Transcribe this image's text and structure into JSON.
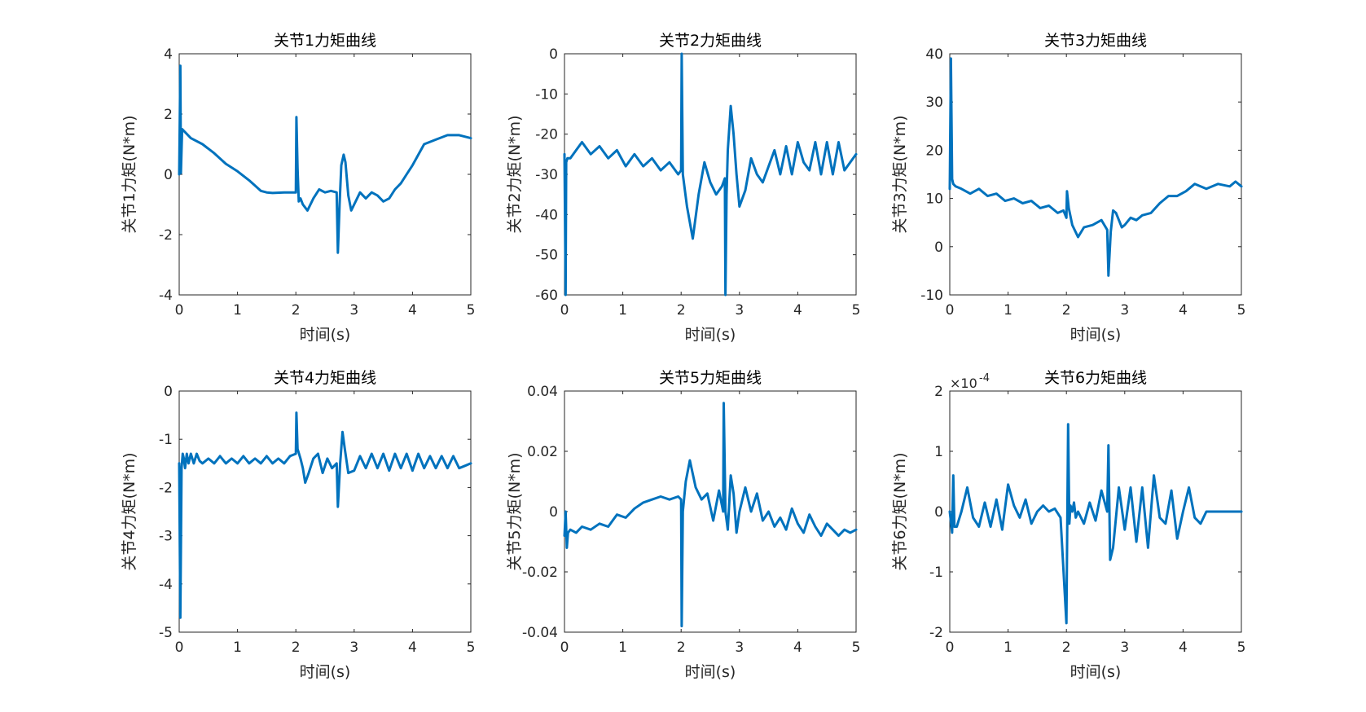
{
  "figure": {
    "line_color": "#0072BD"
  },
  "chart_data": [
    {
      "type": "line",
      "title": "关节1力矩曲线",
      "xlabel": "时间(s)",
      "ylabel": "关节1力矩(N*m)",
      "xlim": [
        0,
        5
      ],
      "ylim": [
        -4,
        4
      ],
      "xticks": [
        0,
        1,
        2,
        3,
        4,
        5
      ],
      "yticks": [
        -4,
        -2,
        0,
        2,
        4
      ],
      "exponent_label": "",
      "grid": false,
      "series": [
        {
          "x": [
            0,
            0.02,
            0.03,
            0.05,
            0.2,
            0.4,
            0.6,
            0.8,
            1.0,
            1.2,
            1.4,
            1.5,
            1.6,
            1.8,
            2.0,
            2.01,
            2.03,
            2.05,
            2.08,
            2.12,
            2.2,
            2.3,
            2.4,
            2.5,
            2.6,
            2.7,
            2.72,
            2.75,
            2.78,
            2.82,
            2.85,
            2.9,
            2.95,
            3.0,
            3.1,
            3.2,
            3.3,
            3.4,
            3.5,
            3.6,
            3.7,
            3.8,
            3.9,
            4.0,
            4.2,
            4.4,
            4.6,
            4.8,
            5.0
          ],
          "y": [
            0.0,
            3.6,
            0.05,
            1.5,
            1.2,
            1.0,
            0.7,
            0.35,
            0.1,
            -0.2,
            -0.55,
            -0.6,
            -0.62,
            -0.6,
            -0.6,
            1.9,
            0.2,
            -0.9,
            -0.8,
            -1.0,
            -1.2,
            -0.8,
            -0.5,
            -0.6,
            -0.55,
            -0.6,
            -2.6,
            -1.0,
            0.3,
            0.65,
            0.4,
            -0.7,
            -1.2,
            -1.0,
            -0.6,
            -0.8,
            -0.6,
            -0.7,
            -0.9,
            -0.8,
            -0.5,
            -0.3,
            0.0,
            0.3,
            1.0,
            1.15,
            1.3,
            1.3,
            1.2
          ]
        }
      ]
    },
    {
      "type": "line",
      "title": "关节2力矩曲线",
      "xlabel": "时间(s)",
      "ylabel": "关节2力矩(N*m)",
      "xlim": [
        0,
        5
      ],
      "ylim": [
        -60,
        0
      ],
      "xticks": [
        0,
        1,
        2,
        3,
        4,
        5
      ],
      "yticks": [
        -60,
        -50,
        -40,
        -30,
        -20,
        -10,
        0
      ],
      "exponent_label": "",
      "grid": false,
      "series": [
        {
          "x": [
            0,
            0.02,
            0.03,
            0.05,
            0.1,
            0.2,
            0.3,
            0.45,
            0.6,
            0.75,
            0.9,
            1.05,
            1.2,
            1.35,
            1.5,
            1.65,
            1.8,
            1.95,
            2.0,
            2.01,
            2.03,
            2.1,
            2.2,
            2.3,
            2.4,
            2.5,
            2.6,
            2.7,
            2.75,
            2.76,
            2.78,
            2.8,
            2.85,
            2.9,
            2.95,
            3.0,
            3.1,
            3.2,
            3.3,
            3.4,
            3.5,
            3.6,
            3.7,
            3.8,
            3.9,
            4.0,
            4.1,
            4.2,
            4.3,
            4.4,
            4.5,
            4.6,
            4.7,
            4.8,
            4.9,
            5.0
          ],
          "y": [
            -25,
            -60,
            -27,
            -26,
            -26,
            -24,
            -22,
            -25,
            -23,
            -26,
            -24,
            -28,
            -25,
            -28,
            -26,
            -29,
            -27,
            -30,
            -29,
            0,
            -30,
            -38,
            -46,
            -35,
            -27,
            -32,
            -35,
            -33,
            -31,
            -60,
            -35,
            -24,
            -13,
            -20,
            -30,
            -38,
            -34,
            -26,
            -30,
            -32,
            -28,
            -24,
            -30,
            -23,
            -30,
            -22,
            -27,
            -29,
            -22,
            -30,
            -22,
            -30,
            -22,
            -29,
            -27,
            -25
          ]
        }
      ]
    },
    {
      "type": "line",
      "title": "关节3力矩曲线",
      "xlabel": "时间(s)",
      "ylabel": "关节3力矩(N*m)",
      "xlim": [
        0,
        5
      ],
      "ylim": [
        -10,
        40
      ],
      "xticks": [
        0,
        1,
        2,
        3,
        4,
        5
      ],
      "yticks": [
        -10,
        0,
        10,
        20,
        30,
        40
      ],
      "exponent_label": "",
      "grid": false,
      "series": [
        {
          "x": [
            0,
            0.02,
            0.04,
            0.06,
            0.1,
            0.2,
            0.35,
            0.5,
            0.65,
            0.8,
            0.95,
            1.1,
            1.25,
            1.4,
            1.55,
            1.7,
            1.85,
            1.95,
            2.0,
            2.01,
            2.04,
            2.1,
            2.2,
            2.3,
            2.45,
            2.6,
            2.7,
            2.72,
            2.76,
            2.8,
            2.85,
            2.95,
            3.0,
            3.1,
            3.2,
            3.3,
            3.45,
            3.6,
            3.75,
            3.9,
            4.05,
            4.2,
            4.4,
            4.6,
            4.8,
            4.9,
            5.0
          ],
          "y": [
            12,
            39,
            14,
            13,
            12.5,
            12,
            11,
            12,
            10.5,
            11,
            9.5,
            10,
            9,
            9.5,
            8,
            8.5,
            7,
            7.5,
            6,
            11.5,
            8,
            4.5,
            2,
            4,
            4.5,
            5.5,
            3.5,
            -6,
            3,
            7.5,
            7,
            4,
            4.5,
            6,
            5.5,
            6.5,
            7,
            9,
            10.5,
            10.5,
            11.5,
            13,
            12,
            13,
            12.5,
            13.5,
            12.5
          ]
        }
      ]
    },
    {
      "type": "line",
      "title": "关节4力矩曲线",
      "xlabel": "时间(s)",
      "ylabel": "关节4力矩(N*m)",
      "xlim": [
        0,
        5
      ],
      "ylim": [
        -5,
        0
      ],
      "xticks": [
        0,
        1,
        2,
        3,
        4,
        5
      ],
      "yticks": [
        -5,
        -4,
        -3,
        -2,
        -1,
        0
      ],
      "exponent_label": "",
      "grid": false,
      "series": [
        {
          "x": [
            0,
            0.02,
            0.04,
            0.06,
            0.08,
            0.1,
            0.13,
            0.16,
            0.2,
            0.25,
            0.3,
            0.35,
            0.4,
            0.5,
            0.6,
            0.7,
            0.8,
            0.9,
            1.0,
            1.1,
            1.2,
            1.3,
            1.4,
            1.5,
            1.6,
            1.7,
            1.8,
            1.9,
            2.0,
            2.01,
            2.03,
            2.08,
            2.12,
            2.16,
            2.22,
            2.3,
            2.38,
            2.46,
            2.54,
            2.62,
            2.7,
            2.72,
            2.76,
            2.8,
            2.84,
            2.9,
            3.0,
            3.1,
            3.2,
            3.3,
            3.4,
            3.5,
            3.6,
            3.7,
            3.8,
            3.9,
            4.0,
            4.1,
            4.2,
            4.3,
            4.4,
            4.5,
            4.6,
            4.7,
            4.8,
            4.9,
            5.0
          ],
          "y": [
            -1.5,
            -4.7,
            -1.6,
            -1.3,
            -1.4,
            -1.6,
            -1.3,
            -1.5,
            -1.3,
            -1.5,
            -1.3,
            -1.45,
            -1.5,
            -1.4,
            -1.5,
            -1.35,
            -1.5,
            -1.4,
            -1.5,
            -1.35,
            -1.5,
            -1.4,
            -1.5,
            -1.35,
            -1.5,
            -1.4,
            -1.5,
            -1.35,
            -1.3,
            -0.45,
            -1.2,
            -1.4,
            -1.6,
            -1.9,
            -1.7,
            -1.4,
            -1.3,
            -1.7,
            -1.4,
            -1.6,
            -1.5,
            -2.4,
            -1.5,
            -0.85,
            -1.2,
            -1.7,
            -1.65,
            -1.35,
            -1.6,
            -1.3,
            -1.6,
            -1.3,
            -1.65,
            -1.3,
            -1.6,
            -1.3,
            -1.65,
            -1.3,
            -1.6,
            -1.35,
            -1.6,
            -1.35,
            -1.6,
            -1.35,
            -1.6,
            -1.55,
            -1.5
          ]
        }
      ]
    },
    {
      "type": "line",
      "title": "关节5力矩曲线",
      "xlabel": "时间(s)",
      "ylabel": "关节5力矩(N*m)",
      "xlim": [
        0,
        5
      ],
      "ylim": [
        -0.04,
        0.04
      ],
      "xticks": [
        0,
        1,
        2,
        3,
        4,
        5
      ],
      "yticks": [
        -0.04,
        -0.02,
        0,
        0.02,
        0.04
      ],
      "exponent_label": "",
      "grid": false,
      "series": [
        {
          "x": [
            0,
            0.02,
            0.04,
            0.06,
            0.1,
            0.2,
            0.3,
            0.45,
            0.6,
            0.75,
            0.9,
            1.05,
            1.2,
            1.35,
            1.5,
            1.65,
            1.8,
            1.95,
            2.0,
            2.01,
            2.03,
            2.08,
            2.15,
            2.25,
            2.35,
            2.45,
            2.55,
            2.65,
            2.72,
            2.73,
            2.76,
            2.8,
            2.85,
            2.9,
            2.95,
            3.0,
            3.1,
            3.2,
            3.3,
            3.4,
            3.5,
            3.6,
            3.7,
            3.8,
            3.9,
            4.0,
            4.1,
            4.2,
            4.3,
            4.4,
            4.5,
            4.6,
            4.7,
            4.8,
            4.9,
            5.0
          ],
          "y": [
            -0.008,
            0.0,
            -0.012,
            -0.007,
            -0.006,
            -0.007,
            -0.005,
            -0.006,
            -0.004,
            -0.005,
            -0.001,
            -0.002,
            0.001,
            0.003,
            0.004,
            0.005,
            0.004,
            0.005,
            0.004,
            -0.038,
            0.0,
            0.01,
            0.017,
            0.008,
            0.004,
            0.006,
            -0.003,
            0.007,
            0.0,
            0.036,
            0.0,
            -0.006,
            0.012,
            0.006,
            -0.007,
            0.0,
            0.008,
            0.0,
            0.006,
            -0.003,
            0.0,
            -0.005,
            -0.002,
            -0.006,
            0.001,
            -0.004,
            -0.007,
            -0.001,
            -0.005,
            -0.008,
            -0.004,
            -0.006,
            -0.008,
            -0.006,
            -0.007,
            -0.006
          ]
        }
      ]
    },
    {
      "type": "line",
      "title": "关节6力矩曲线",
      "xlabel": "时间(s)",
      "ylabel": "关节6力矩(N*m)",
      "xlim": [
        0,
        5
      ],
      "ylim": [
        -2,
        2
      ],
      "xticks": [
        0,
        1,
        2,
        3,
        4,
        5
      ],
      "yticks": [
        -2,
        -1,
        0,
        1,
        2
      ],
      "exponent_label": "×10",
      "exponent_power": "-4",
      "grid": false,
      "series": [
        {
          "x": [
            0,
            0.04,
            0.06,
            0.08,
            0.12,
            0.2,
            0.3,
            0.4,
            0.5,
            0.6,
            0.7,
            0.8,
            0.9,
            1.0,
            1.1,
            1.2,
            1.3,
            1.4,
            1.5,
            1.6,
            1.7,
            1.8,
            1.9,
            2.0,
            2.03,
            2.05,
            2.07,
            2.1,
            2.13,
            2.16,
            2.2,
            2.3,
            2.4,
            2.5,
            2.6,
            2.7,
            2.72,
            2.75,
            2.8,
            2.9,
            3.0,
            3.1,
            3.2,
            3.3,
            3.4,
            3.5,
            3.6,
            3.7,
            3.8,
            3.9,
            4.0,
            4.1,
            4.2,
            4.3,
            4.4,
            4.5,
            4.6,
            4.7,
            4.8,
            4.9,
            5.0
          ],
          "y": [
            0.0,
            -0.35,
            0.6,
            -0.25,
            -0.25,
            0.0,
            0.4,
            -0.1,
            -0.25,
            0.15,
            -0.25,
            0.2,
            -0.3,
            0.45,
            0.1,
            -0.1,
            0.2,
            -0.2,
            0.0,
            0.1,
            0.0,
            0.05,
            -0.1,
            -1.85,
            1.45,
            -0.2,
            0.1,
            0.0,
            0.15,
            -0.1,
            0.0,
            -0.2,
            0.15,
            -0.15,
            0.35,
            0.0,
            1.1,
            -0.8,
            -0.6,
            0.4,
            -0.3,
            0.4,
            -0.5,
            0.4,
            -0.6,
            0.6,
            -0.1,
            -0.2,
            0.35,
            -0.45,
            0.0,
            0.4,
            -0.1,
            -0.2,
            0.0,
            0.0,
            0.0,
            0.0,
            0.0,
            0.0,
            0.0
          ]
        }
      ]
    }
  ]
}
